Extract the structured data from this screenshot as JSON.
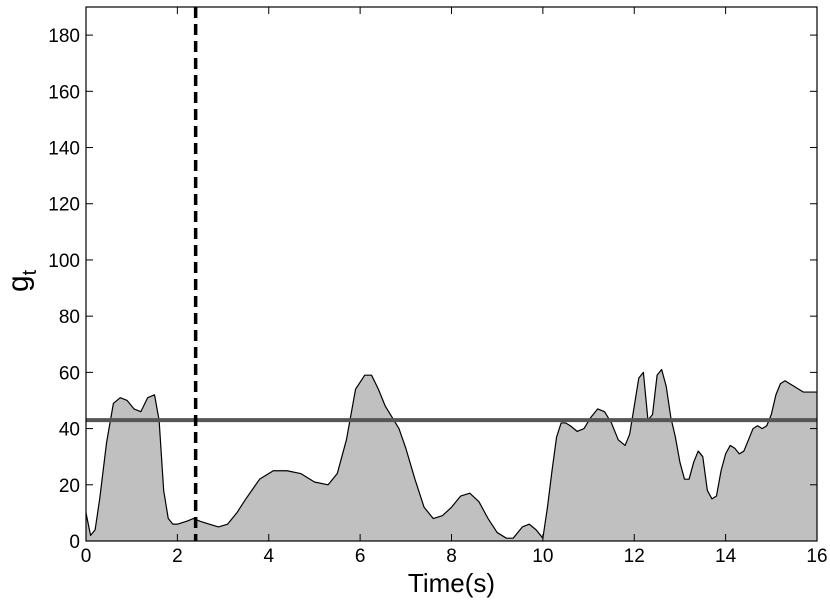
{
  "chart_data": {
    "type": "area",
    "title": "",
    "xlabel": "Time(s)",
    "ylabel": {
      "base": "g",
      "subscript": "t"
    },
    "xlim": [
      0,
      16
    ],
    "ylim": [
      0,
      190
    ],
    "x_ticks": [
      0,
      2,
      4,
      6,
      8,
      10,
      12,
      14,
      16
    ],
    "y_ticks": [
      0,
      20,
      40,
      60,
      80,
      100,
      120,
      140,
      160,
      180
    ],
    "grid": false,
    "legend": "none",
    "colors": {
      "area_fill": "#c0c0c0",
      "area_line": "#000000",
      "threshold_line": "#555555",
      "marker_line": "#000000",
      "axis": "#000000"
    },
    "series": [
      {
        "x": [
          0.0,
          0.1,
          0.2,
          0.3,
          0.45,
          0.6,
          0.75,
          0.9,
          1.05,
          1.2,
          1.35,
          1.5,
          1.6,
          1.7,
          1.8,
          1.9,
          2.0,
          2.2,
          2.35,
          2.5,
          2.7,
          2.9,
          3.1,
          3.3,
          3.5,
          3.8,
          4.1,
          4.4,
          4.7,
          5.0,
          5.3,
          5.5,
          5.7,
          5.9,
          6.1,
          6.25,
          6.4,
          6.55,
          6.7,
          6.85,
          7.0,
          7.2,
          7.4,
          7.6,
          7.8,
          8.0,
          8.2,
          8.4,
          8.6,
          8.8,
          9.0,
          9.2,
          9.35,
          9.45,
          9.55,
          9.7,
          9.85,
          10.0,
          10.1,
          10.2,
          10.3,
          10.4,
          10.5,
          10.6,
          10.75,
          10.9,
          11.05,
          11.2,
          11.35,
          11.5,
          11.65,
          11.8,
          11.9,
          12.0,
          12.1,
          12.2,
          12.3,
          12.4,
          12.5,
          12.6,
          12.7,
          12.8,
          12.9,
          13.0,
          13.1,
          13.2,
          13.3,
          13.4,
          13.5,
          13.6,
          13.7,
          13.8,
          13.9,
          14.0,
          14.1,
          14.2,
          14.3,
          14.4,
          14.5,
          14.6,
          14.7,
          14.8,
          14.9,
          15.0,
          15.1,
          15.2,
          15.3,
          15.4,
          15.5,
          15.6,
          15.7,
          15.8,
          15.9,
          16.0
        ],
        "y": [
          10,
          2,
          4,
          15,
          35,
          49,
          51,
          50,
          47,
          46,
          51,
          52,
          43,
          18,
          8,
          6,
          6,
          7,
          8,
          7,
          6,
          5,
          6,
          10,
          15,
          22,
          25,
          25,
          24,
          21,
          20,
          24,
          36,
          54,
          59,
          59,
          54,
          48,
          44,
          40,
          33,
          22,
          12,
          8,
          9,
          12,
          16,
          17,
          14,
          8,
          3,
          1,
          1,
          3,
          5,
          6,
          4,
          1,
          12,
          25,
          37,
          42,
          42,
          41,
          39,
          40,
          44,
          47,
          46,
          42,
          36,
          34,
          38,
          48,
          58,
          60,
          43,
          45,
          59,
          61,
          55,
          44,
          37,
          28,
          22,
          22,
          28,
          32,
          30,
          18,
          15,
          16,
          25,
          31,
          34,
          33,
          31,
          32,
          36,
          40,
          41,
          40,
          41,
          45,
          52,
          56,
          57,
          56,
          55,
          54,
          53,
          53,
          53,
          53
        ]
      }
    ],
    "threshold_y": 43,
    "marker_x": 2.4
  }
}
